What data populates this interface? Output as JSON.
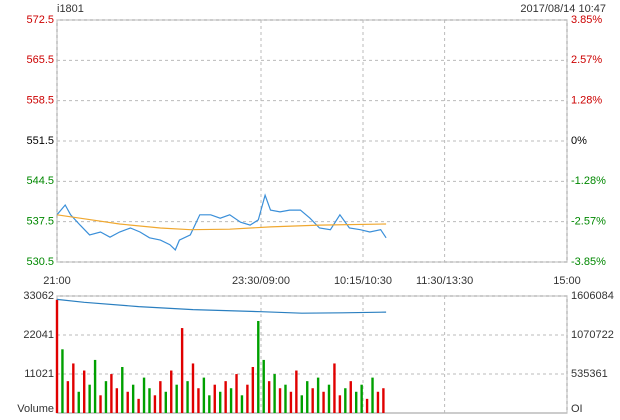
{
  "chart_data": [
    {
      "type": "line",
      "title": "i1801",
      "subtitle": "2017/08/14 10:47",
      "xlim": [
        0,
        375
      ],
      "xticks": [
        {
          "value": 0,
          "label": "21:00"
        },
        {
          "value": 150,
          "label": "23:30/09:00"
        },
        {
          "value": 225,
          "label": "10:15/10:30"
        },
        {
          "value": 285,
          "label": "11:30/13:30"
        },
        {
          "value": 375,
          "label": "15:00"
        }
      ],
      "ylim": [
        530.5,
        572.5
      ],
      "yticks": [
        530.5,
        537.5,
        544.5,
        551.5,
        558.5,
        565.5,
        572.5
      ],
      "y2lim": [
        -3.85,
        3.85
      ],
      "y2ticks": [
        {
          "value": -3.85,
          "label": "-3.85%"
        },
        {
          "value": -2.57,
          "label": "-2.57%"
        },
        {
          "value": -1.28,
          "label": "-1.28%"
        },
        {
          "value": 0,
          "label": "0%"
        },
        {
          "value": 1.28,
          "label": "1.28%"
        },
        {
          "value": 2.57,
          "label": "2.57%"
        },
        {
          "value": 3.85,
          "label": "3.85%"
        }
      ],
      "up_color": "#cc0000",
      "down_color": "#008800",
      "flat_color": "#000000",
      "grid": true,
      "series": [
        {
          "color": "#3a8fd9",
          "x": [
            0,
            6,
            10,
            17,
            24,
            32,
            39,
            46,
            54,
            61,
            68,
            76,
            83,
            87,
            90,
            98,
            105,
            113,
            120,
            127,
            135,
            142,
            148,
            153,
            157,
            164,
            171,
            179,
            186,
            193,
            201,
            208,
            215,
            223,
            230,
            238,
            242
          ],
          "values": [
            538.7,
            540.4,
            538.7,
            536.9,
            535.2,
            535.7,
            534.8,
            535.7,
            536.4,
            535.7,
            534.7,
            534.3,
            533.5,
            532.6,
            534.3,
            535.2,
            538.7,
            538.7,
            538.1,
            538.7,
            537.4,
            536.9,
            537.8,
            542.1,
            539.5,
            539.2,
            539.5,
            539.5,
            538.1,
            536.4,
            536.1,
            538.7,
            536.4,
            536.1,
            535.7,
            536.1,
            534.7
          ]
        },
        {
          "color": "#f0a830",
          "x": [
            0,
            17,
            46,
            76,
            98,
            127,
            157,
            193,
            242
          ],
          "values": [
            538.7,
            538.1,
            537.1,
            536.4,
            536.1,
            536.2,
            536.6,
            536.9,
            537.1
          ]
        }
      ]
    },
    {
      "type": "bar",
      "ylabel": "Volume",
      "y2label": "OI",
      "xlim": [
        0,
        375
      ],
      "xgrid": [
        0,
        150,
        225,
        285,
        375
      ],
      "ylim": [
        0,
        33062
      ],
      "yticks": [
        11021,
        22041,
        33062
      ],
      "y2lim": [
        0,
        1606084
      ],
      "y2ticks": [
        535361,
        1070722,
        1606084
      ],
      "grid": true,
      "x": [
        0,
        4,
        8,
        12,
        16,
        20,
        24,
        28,
        32,
        36,
        40,
        44,
        48,
        52,
        56,
        60,
        64,
        68,
        72,
        76,
        80,
        84,
        88,
        92,
        96,
        100,
        104,
        108,
        112,
        116,
        120,
        124,
        128,
        132,
        136,
        140,
        144,
        148,
        152,
        156,
        160,
        164,
        168,
        172,
        176,
        180,
        184,
        188,
        192,
        196,
        200,
        204,
        208,
        212,
        216,
        220,
        224,
        228,
        232,
        236,
        240
      ],
      "series": [
        {
          "values": [
            32000,
            18000,
            9000,
            14000,
            6000,
            12000,
            8000,
            15000,
            5000,
            9000,
            11000,
            7000,
            13000,
            6000,
            8000,
            4000,
            10000,
            7000,
            5000,
            9000,
            6000,
            12000,
            8000,
            24000,
            9000,
            14000,
            7000,
            10000,
            5000,
            8000,
            6000,
            9000,
            7000,
            11000,
            5000,
            8000,
            13000,
            26000,
            15000,
            9000,
            11000,
            7000,
            8000,
            6000,
            12000,
            5000,
            9000,
            7000,
            10000,
            6000,
            8000,
            14000,
            5000,
            7000,
            9000,
            6000,
            8000,
            4000,
            10000,
            6000,
            7000
          ],
          "colors": [
            "#e00000",
            "#00a000",
            "#e00000",
            "#e00000",
            "#00a000",
            "#e00000",
            "#00a000",
            "#00a000",
            "#e00000",
            "#00a000",
            "#e00000",
            "#e00000",
            "#00a000",
            "#e00000",
            "#00a000",
            "#e00000",
            "#00a000",
            "#00a000",
            "#e00000",
            "#e00000",
            "#00a000",
            "#e00000",
            "#00a000",
            "#e00000",
            "#00a000",
            "#e00000",
            "#e00000",
            "#00a000",
            "#00a000",
            "#e00000",
            "#00a000",
            "#e00000",
            "#00a000",
            "#e00000",
            "#00a000",
            "#e00000",
            "#e00000",
            "#00a000",
            "#00a000",
            "#e00000",
            "#00a000",
            "#e00000",
            "#00a000",
            "#e00000",
            "#e00000",
            "#00a000",
            "#00a000",
            "#e00000",
            "#00a000",
            "#e00000",
            "#00a000",
            "#e00000",
            "#e00000",
            "#00a000",
            "#e00000",
            "#00a000",
            "#00a000",
            "#e00000",
            "#00a000",
            "#e00000",
            "#e00000"
          ]
        },
        {
          "axis": "y2",
          "color": "#2a7fc0",
          "x": [
            0,
            20,
            60,
            100,
            150,
            180,
            210,
            242
          ],
          "values": [
            1560000,
            1520000,
            1460000,
            1420000,
            1390000,
            1370000,
            1375000,
            1385000
          ]
        }
      ]
    }
  ]
}
